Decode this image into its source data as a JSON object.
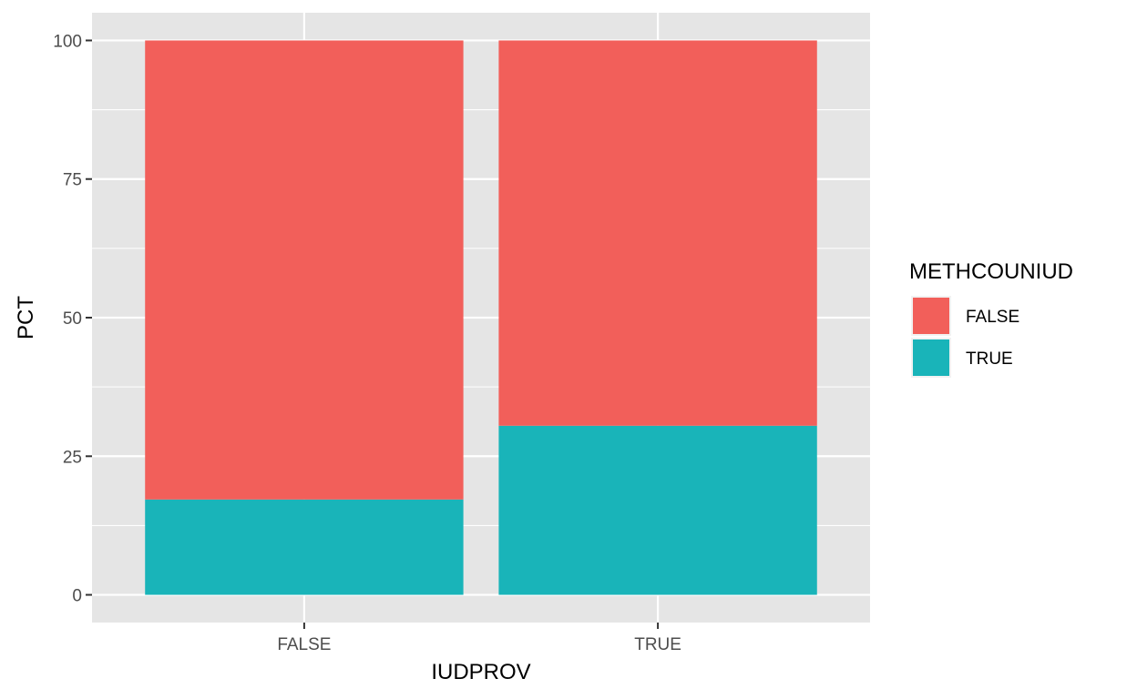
{
  "chart_data": {
    "type": "bar",
    "stacked": true,
    "title": "",
    "xlabel": "IUDPROV",
    "ylabel": "PCT",
    "categories": [
      "FALSE",
      "TRUE"
    ],
    "ylim": [
      -5,
      105
    ],
    "yticks": [
      0,
      25,
      50,
      75,
      100
    ],
    "ytick_labels": [
      "0",
      "25",
      "50",
      "75",
      "100"
    ],
    "grid": true,
    "legend": {
      "title": "METHCOUNIUD",
      "placement": "right",
      "entries": [
        "FALSE",
        "TRUE"
      ]
    },
    "series": [
      {
        "name": "TRUE",
        "color": "#19b4b9",
        "values": [
          17.2,
          30.5
        ]
      },
      {
        "name": "FALSE",
        "color": "#f25f5a",
        "values": [
          82.8,
          69.5
        ]
      }
    ],
    "colors": {
      "panel_bg": "#e5e5e5",
      "grid": "#ffffff",
      "tick": "#333333"
    }
  }
}
